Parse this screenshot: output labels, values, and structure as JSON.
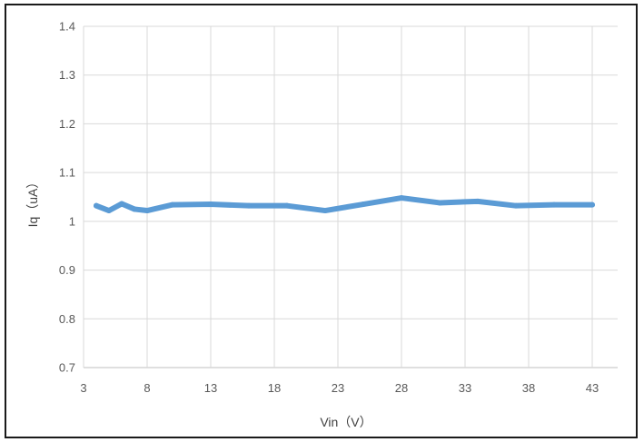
{
  "chart_data": {
    "type": "line",
    "xlabel": "Vin（V）",
    "ylabel": "Iq（uA）",
    "xlim": [
      3,
      45
    ],
    "ylim": [
      0.7,
      1.4
    ],
    "x_ticks": [
      "3",
      "8",
      "13",
      "18",
      "23",
      "28",
      "33",
      "38",
      "43"
    ],
    "y_ticks": [
      "0.7",
      "0.8",
      "0.9",
      "1",
      "1.1",
      "1.2",
      "1.3",
      "1.4"
    ],
    "grid": true,
    "legend": "none",
    "series": [
      {
        "color": "#5b9bd5",
        "x": [
          4,
          5,
          6,
          7,
          8,
          10,
          13,
          16,
          19,
          22,
          25,
          28,
          31,
          34,
          37,
          40,
          43
        ],
        "y": [
          1.032,
          1.022,
          1.036,
          1.025,
          1.022,
          1.034,
          1.035,
          1.032,
          1.032,
          1.022,
          1.035,
          1.048,
          1.038,
          1.041,
          1.032,
          1.034,
          1.034
        ]
      }
    ]
  }
}
